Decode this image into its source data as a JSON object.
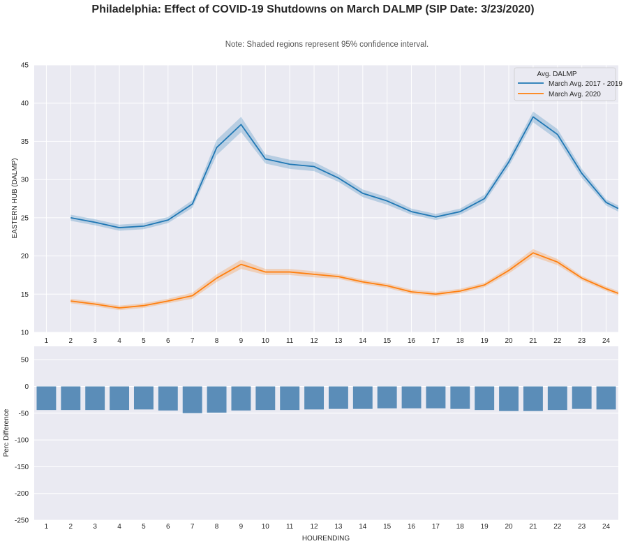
{
  "title": "Philadelphia: Effect of COVID-19 Shutdowns on March DALMP (SIP Date: 3/23/2020)",
  "note": "Note: Shaded regions represent 95% confidence interval.",
  "colors": {
    "background": "#eaeaf2",
    "grid": "#ffffff",
    "series_2017_2019": "#1f77b4",
    "series_2020": "#ff7f0e",
    "bars": "#5b8db8"
  },
  "chart_data": [
    {
      "type": "line",
      "title": "",
      "xlabel": "",
      "ylabel": "EASTERN HUB (DALMP)",
      "x": [
        1,
        2,
        3,
        4,
        5,
        6,
        7,
        8,
        9,
        10,
        11,
        12,
        13,
        14,
        15,
        16,
        17,
        18,
        19,
        20,
        21,
        22,
        23,
        24
      ],
      "xlim": [
        0.5,
        24.5
      ],
      "ylim": [
        10,
        45
      ],
      "yticks": [
        10,
        15,
        20,
        25,
        30,
        35,
        40,
        45
      ],
      "grid": true,
      "legend": {
        "title": "Avg. DALMP",
        "placement": "top-right"
      },
      "series": [
        {
          "name": "March Avg. 2017 - 2019",
          "x": [
            2,
            3,
            4,
            5,
            6,
            7,
            8,
            9,
            10,
            11,
            12,
            13,
            14,
            15,
            16,
            17,
            18,
            19,
            20,
            21,
            22,
            23,
            24,
            24.5
          ],
          "values": [
            25.0,
            24.4,
            23.7,
            23.9,
            24.7,
            26.8,
            34.2,
            37.2,
            32.7,
            32.0,
            31.7,
            30.2,
            28.2,
            27.2,
            25.8,
            25.1,
            25.8,
            27.5,
            32.3,
            38.2,
            35.9,
            30.8,
            27.0,
            26.2
          ],
          "ci": [
            0.4,
            0.4,
            0.4,
            0.4,
            0.4,
            0.5,
            1.0,
            1.0,
            0.6,
            0.6,
            0.6,
            0.5,
            0.5,
            0.5,
            0.4,
            0.4,
            0.4,
            0.5,
            0.6,
            0.7,
            0.7,
            0.6,
            0.4,
            0.4
          ]
        },
        {
          "name": "March Avg. 2020",
          "x": [
            2,
            3,
            4,
            5,
            6,
            7,
            8,
            9,
            10,
            11,
            12,
            13,
            14,
            15,
            16,
            17,
            18,
            19,
            20,
            21,
            22,
            23,
            24,
            24.5
          ],
          "values": [
            14.1,
            13.7,
            13.2,
            13.5,
            14.1,
            14.8,
            17.1,
            18.9,
            17.9,
            17.9,
            17.6,
            17.3,
            16.6,
            16.1,
            15.3,
            15.0,
            15.4,
            16.2,
            18.1,
            20.4,
            19.2,
            17.1,
            15.7,
            15.1
          ],
          "ci": [
            0.3,
            0.3,
            0.3,
            0.3,
            0.3,
            0.4,
            0.5,
            0.6,
            0.4,
            0.4,
            0.4,
            0.3,
            0.3,
            0.3,
            0.3,
            0.3,
            0.3,
            0.3,
            0.4,
            0.5,
            0.4,
            0.3,
            0.3,
            0.3
          ]
        }
      ]
    },
    {
      "type": "bar",
      "title": "",
      "xlabel": "HOURENDING",
      "ylabel": "Perc Difference",
      "categories": [
        "1",
        "2",
        "3",
        "4",
        "5",
        "6",
        "7",
        "8",
        "9",
        "10",
        "11",
        "12",
        "13",
        "14",
        "15",
        "16",
        "17",
        "18",
        "19",
        "20",
        "21",
        "22",
        "23",
        "24"
      ],
      "values": [
        -44,
        -44,
        -44,
        -44,
        -43,
        -45,
        -50,
        -49,
        -45,
        -44,
        -44,
        -43,
        -42,
        -42,
        -41,
        -41,
        -41,
        -42,
        -44,
        -46,
        -46,
        -44,
        -42,
        -43
      ],
      "ylim": [
        -250,
        75
      ],
      "yticks": [
        -250,
        -200,
        -150,
        -100,
        -50,
        0,
        50
      ],
      "grid": true
    }
  ]
}
